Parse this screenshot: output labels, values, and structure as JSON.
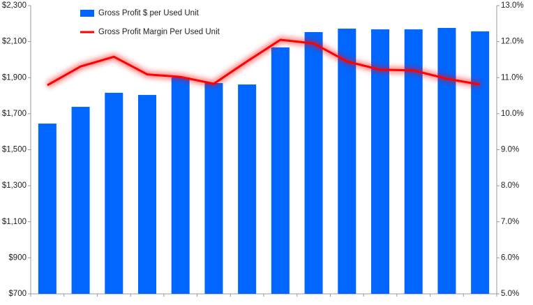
{
  "chart_data": {
    "type": "bar",
    "categories": [
      null,
      null,
      null,
      null,
      null,
      null,
      null,
      null,
      null,
      null,
      null,
      null,
      null,
      null
    ],
    "series": [
      {
        "name": "Gross Profit $ per Used Unit",
        "type": "bar",
        "color": "#0066ff",
        "values": [
          1645,
          1738,
          1816,
          1804,
          1901,
          1870,
          1862,
          2068,
          2153,
          2172,
          2168,
          2168,
          2176,
          2157
        ]
      },
      {
        "name": "Gross Profit Margin Per Used Unit",
        "type": "line",
        "axis": "y2",
        "color": "#ff0000",
        "values": [
          10.79,
          11.31,
          11.58,
          11.09,
          11.02,
          10.83,
          11.45,
          12.05,
          11.95,
          11.45,
          11.22,
          11.2,
          10.97,
          10.81
        ]
      }
    ],
    "ylim": [
      700,
      2300
    ],
    "yticks": [
      {
        "value": 700,
        "label": "$700"
      },
      {
        "value": 900,
        "label": "$900"
      },
      {
        "value": 1100,
        "label": "$1,100"
      },
      {
        "value": 1300,
        "label": "$1,300"
      },
      {
        "value": 1500,
        "label": "$1,500"
      },
      {
        "value": 1700,
        "label": "$1,700"
      },
      {
        "value": 1900,
        "label": "$1,900"
      },
      {
        "value": 2100,
        "label": "$2,100"
      },
      {
        "value": 2300,
        "label": "$2,300"
      }
    ],
    "y2lim": [
      5,
      13
    ],
    "y2ticks": [
      {
        "value": 5,
        "label": "5.0%"
      },
      {
        "value": 6,
        "label": "6.0%"
      },
      {
        "value": 7,
        "label": "7.0%"
      },
      {
        "value": 8,
        "label": "8.0%"
      },
      {
        "value": 9,
        "label": "9.0%"
      },
      {
        "value": 10,
        "label": "10.0%"
      },
      {
        "value": 11,
        "label": "11.0%"
      },
      {
        "value": 12,
        "label": "12.0%"
      },
      {
        "value": 13,
        "label": "13.0%"
      }
    ],
    "grid": false,
    "legend": "top-left"
  }
}
